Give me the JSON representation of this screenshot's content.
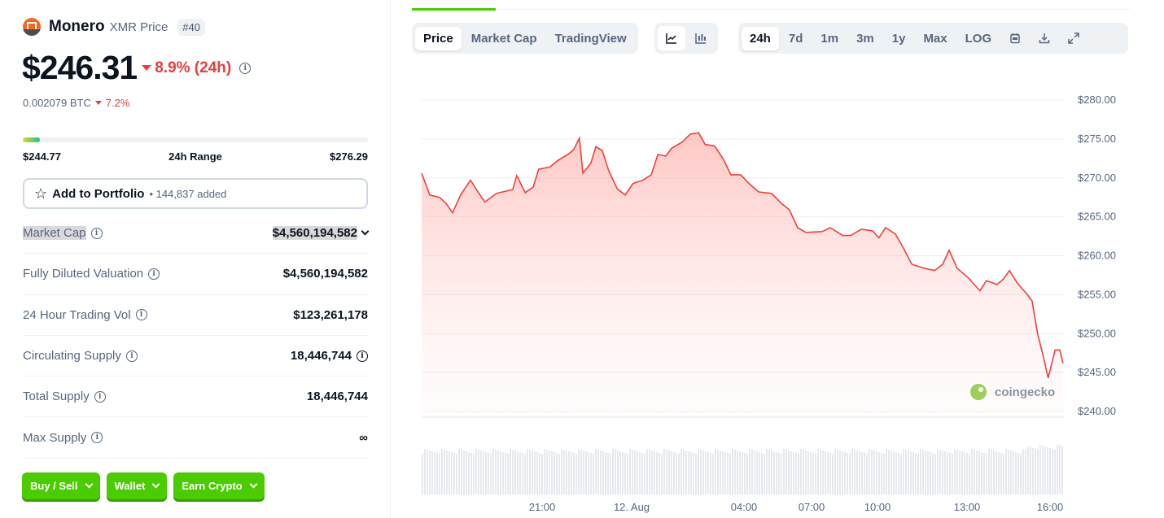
{
  "coin": {
    "name": "Monero",
    "subtitle": "XMR Price",
    "rank": "#40",
    "price": "$246.31",
    "change_24h": "8.9% (24h)",
    "btc_price": "0.002079 BTC",
    "btc_change": "7.2%"
  },
  "range": {
    "low": "$244.77",
    "label": "24h Range",
    "high": "$276.29",
    "position": 0.05
  },
  "portfolio": {
    "label": "Add to Portfolio",
    "count": "144,837 added"
  },
  "stats": [
    {
      "label": "Market Cap",
      "value": "$4,560,194,582"
    },
    {
      "label": "Fully Diluted Valuation",
      "value": "$4,560,194,582"
    },
    {
      "label": "24 Hour Trading Vol",
      "value": "$123,261,178"
    },
    {
      "label": "Circulating Supply",
      "value": "18,446,744"
    },
    {
      "label": "Total Supply",
      "value": "18,446,744"
    },
    {
      "label": "Max Supply",
      "value": "∞"
    }
  ],
  "buttons": [
    "Buy / Sell",
    "Wallet",
    "Earn Crypto"
  ],
  "chart_tabs": [
    "Price",
    "Market Cap",
    "TradingView"
  ],
  "chart_type_icons": [
    "line-chart-icon",
    "candlestick-icon"
  ],
  "ranges": [
    "24h",
    "7d",
    "1m",
    "3m",
    "1y",
    "Max",
    "LOG"
  ],
  "tool_icons": [
    "calendar-icon",
    "download-icon",
    "expand-icon"
  ],
  "colors": {
    "accent": "#4bcc00",
    "down": "#e53e3e",
    "line": "#f0403a"
  },
  "watermark": "coingecko",
  "chart_data": {
    "type": "area",
    "ylim": [
      240,
      280
    ],
    "y_ticks": [
      "$280.00",
      "$275.00",
      "$270.00",
      "$265.00",
      "$260.00",
      "$255.00",
      "$250.00",
      "$245.00",
      "$240.00"
    ],
    "x_ticks": [
      "21:00",
      "12. Aug",
      "04:00",
      "07:00",
      "10:00",
      "13:00",
      "16:00"
    ],
    "grid": true,
    "points": [
      [
        "16:58",
        270.6
      ],
      [
        "17:14",
        267.8
      ],
      [
        "17:34",
        267.5
      ],
      [
        "17:47",
        266.7
      ],
      [
        "18:00",
        265.5
      ],
      [
        "18:16",
        267.8
      ],
      [
        "18:36",
        269.7
      ],
      [
        "18:49",
        268.4
      ],
      [
        "19:05",
        266.9
      ],
      [
        "19:28",
        268.0
      ],
      [
        "20:01",
        268.5
      ],
      [
        "20:09",
        270.3
      ],
      [
        "20:26",
        268.1
      ],
      [
        "20:42",
        268.8
      ],
      [
        "20:53",
        271.1
      ],
      [
        "21:16",
        271.4
      ],
      [
        "21:31",
        272.2
      ],
      [
        "21:56",
        273.2
      ],
      [
        "22:04",
        273.7
      ],
      [
        "22:15",
        275.1
      ],
      [
        "22:22",
        270.6
      ],
      [
        "22:38",
        271.9
      ],
      [
        "22:48",
        274.0
      ],
      [
        "23:01",
        273.5
      ],
      [
        "23:14",
        270.9
      ],
      [
        "23:31",
        268.6
      ],
      [
        "23:47",
        267.8
      ],
      [
        "00:03",
        269.3
      ],
      [
        "00:24",
        269.7
      ],
      [
        "00:42",
        270.4
      ],
      [
        "00:56",
        273.0
      ],
      [
        "01:13",
        272.8
      ],
      [
        "01:25",
        273.8
      ],
      [
        "01:48",
        274.6
      ],
      [
        "02:05",
        275.6
      ],
      [
        "02:23",
        275.8
      ],
      [
        "02:37",
        274.3
      ],
      [
        "02:57",
        274.1
      ],
      [
        "03:15",
        272.5
      ],
      [
        "03:32",
        270.4
      ],
      [
        "03:53",
        270.4
      ],
      [
        "04:13",
        269.3
      ],
      [
        "04:39",
        268.2
      ],
      [
        "05:14",
        268.0
      ],
      [
        "05:40",
        266.7
      ],
      [
        "06:01",
        265.9
      ],
      [
        "06:23",
        263.6
      ],
      [
        "06:45",
        263.0
      ],
      [
        "07:29",
        263.1
      ],
      [
        "07:51",
        263.6
      ],
      [
        "08:25",
        262.6
      ],
      [
        "08:47",
        262.6
      ],
      [
        "09:16",
        263.4
      ],
      [
        "09:47",
        263.2
      ],
      [
        "10:03",
        262.3
      ],
      [
        "10:16",
        263.6
      ],
      [
        "10:36",
        262.8
      ],
      [
        "10:52",
        261.0
      ],
      [
        "11:09",
        258.9
      ],
      [
        "11:33",
        258.4
      ],
      [
        "11:55",
        258.1
      ],
      [
        "12:11",
        258.9
      ],
      [
        "12:24",
        260.7
      ],
      [
        "12:40",
        258.4
      ],
      [
        "13:04",
        257.1
      ],
      [
        "13:28",
        255.5
      ],
      [
        "13:42",
        256.8
      ],
      [
        "14:05",
        256.3
      ],
      [
        "14:19",
        257.0
      ],
      [
        "14:32",
        258.1
      ],
      [
        "14:49",
        256.5
      ],
      [
        "15:11",
        255.0
      ],
      [
        "15:21",
        254.2
      ],
      [
        "15:33",
        250.0
      ],
      [
        "15:46",
        246.9
      ],
      [
        "15:56",
        244.3
      ],
      [
        "16:11",
        247.9
      ],
      [
        "16:21",
        247.9
      ],
      [
        "16:28",
        246.2
      ]
    ]
  }
}
